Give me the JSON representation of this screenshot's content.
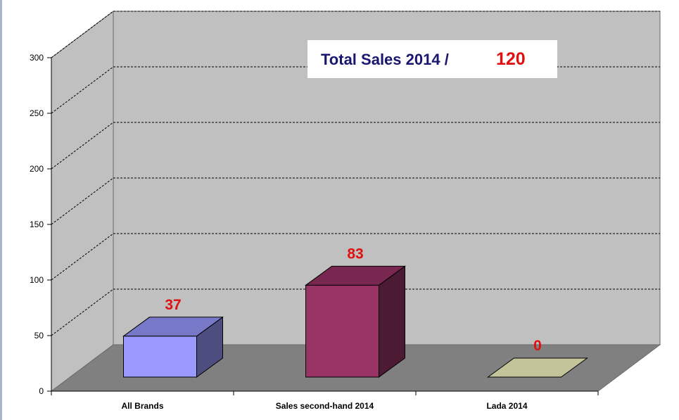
{
  "chart_data": {
    "type": "bar",
    "title": "",
    "categories": [
      "All Brands",
      "Sales second-hand 2014",
      "Lada 2014"
    ],
    "values": [
      37,
      83,
      0
    ],
    "data_labels": [
      "37",
      "83",
      "0"
    ],
    "ylim": [
      0,
      300
    ],
    "yticks": [
      "0",
      "50",
      "100",
      "150",
      "200",
      "250",
      "300"
    ],
    "grid": true,
    "legend": "none",
    "three_d": true,
    "colors": {
      "bar_fronts": [
        "#9999ff",
        "#993366",
        "#c4c49a"
      ],
      "bar_tops": [
        "#7878c8",
        "#782850",
        "#c4c49a"
      ],
      "bar_sides": [
        "#4d4d80",
        "#4d1a33",
        "#a0a078"
      ],
      "wall": "#c0c0c0",
      "side_wall": "#c0c0c0",
      "floor": "#808080",
      "data_label": "#e01010"
    }
  },
  "annotation": {
    "label": "Total Sales 2014 /",
    "value": "120",
    "label_color": "#1a1670",
    "value_color": "#e01010"
  }
}
